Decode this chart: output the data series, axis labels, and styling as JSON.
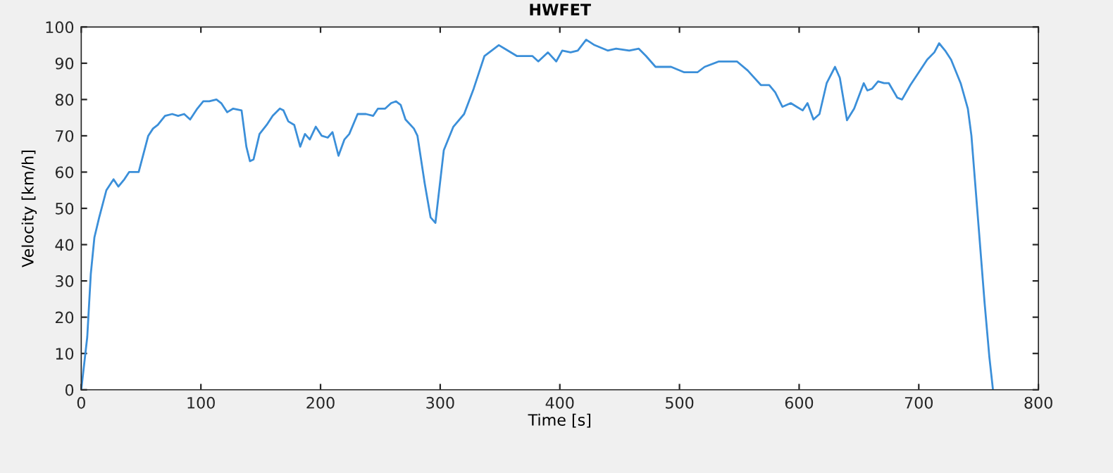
{
  "chart_data": {
    "type": "line",
    "title": "HWFET",
    "xlabel": "Time [s]",
    "ylabel": "Velocity [km/h]",
    "x": [
      0,
      5,
      8,
      11,
      15,
      21,
      27,
      31,
      36,
      40,
      48,
      56,
      60,
      64,
      70,
      76,
      81,
      86,
      91,
      97,
      102,
      107,
      113,
      117,
      122,
      127,
      134,
      138,
      141,
      144,
      149,
      155,
      160,
      166,
      169,
      173,
      178,
      183,
      187,
      191,
      196,
      201,
      206,
      210,
      215,
      220,
      224,
      231,
      238,
      244,
      248,
      254,
      259,
      263,
      267,
      271,
      278,
      281,
      287,
      292,
      296,
      303,
      311,
      320,
      328,
      337,
      343,
      349,
      354,
      364,
      377,
      382,
      390,
      397,
      402,
      409,
      415,
      422,
      429,
      440,
      447,
      458,
      466,
      472,
      480,
      493,
      504,
      515,
      521,
      533,
      548,
      557,
      568,
      575,
      580,
      586,
      593,
      598,
      603,
      607,
      612,
      617,
      623,
      630,
      634,
      640,
      646,
      654,
      657,
      661,
      666,
      671,
      675,
      682,
      686,
      693,
      701,
      707,
      713,
      717,
      722,
      727,
      735,
      741,
      744,
      750,
      755,
      759,
      762
    ],
    "series": [
      {
        "color": "#3b8fd9",
        "values": [
          0,
          14.5,
          32,
          42,
          47.5,
          55,
          58,
          56,
          58,
          60,
          60,
          70,
          72,
          73,
          75.5,
          76,
          75.5,
          76,
          74.5,
          77.5,
          79.5,
          79.5,
          80,
          79,
          76.5,
          77.5,
          77,
          67,
          63,
          63.5,
          70.5,
          73,
          75.5,
          77.5,
          77,
          74,
          73,
          67,
          70.5,
          69,
          72.5,
          70,
          69.5,
          71,
          64.5,
          69,
          70.5,
          76,
          76,
          75.5,
          77.5,
          77.5,
          79,
          79.5,
          78.5,
          74.5,
          72,
          70,
          57,
          47.5,
          46,
          66,
          72.5,
          76,
          83,
          92,
          93.5,
          95,
          94,
          92,
          92,
          90.5,
          93,
          90.5,
          93.5,
          93,
          93.5,
          96.5,
          95,
          93.5,
          94,
          93.5,
          94,
          92,
          89,
          89,
          87.5,
          87.5,
          89,
          90.5,
          90.5,
          88,
          84,
          84,
          82,
          78,
          79,
          78,
          77,
          79,
          74.5,
          76,
          84.5,
          89,
          86,
          74.3,
          77.5,
          84.5,
          82.5,
          83,
          85,
          84.5,
          84.5,
          80.5,
          80,
          84,
          88,
          91,
          93,
          95.5,
          93.5,
          91,
          84.5,
          77.5,
          70,
          45,
          24,
          9,
          0
        ]
      }
    ],
    "xlim": [
      0,
      800
    ],
    "ylim": [
      0,
      100
    ],
    "xticks": [
      0,
      100,
      200,
      300,
      400,
      500,
      600,
      700,
      800
    ],
    "yticks": [
      0,
      10,
      20,
      30,
      40,
      50,
      60,
      70,
      80,
      90,
      100
    ],
    "grid": false,
    "marker": "none",
    "line_style": "solid"
  }
}
